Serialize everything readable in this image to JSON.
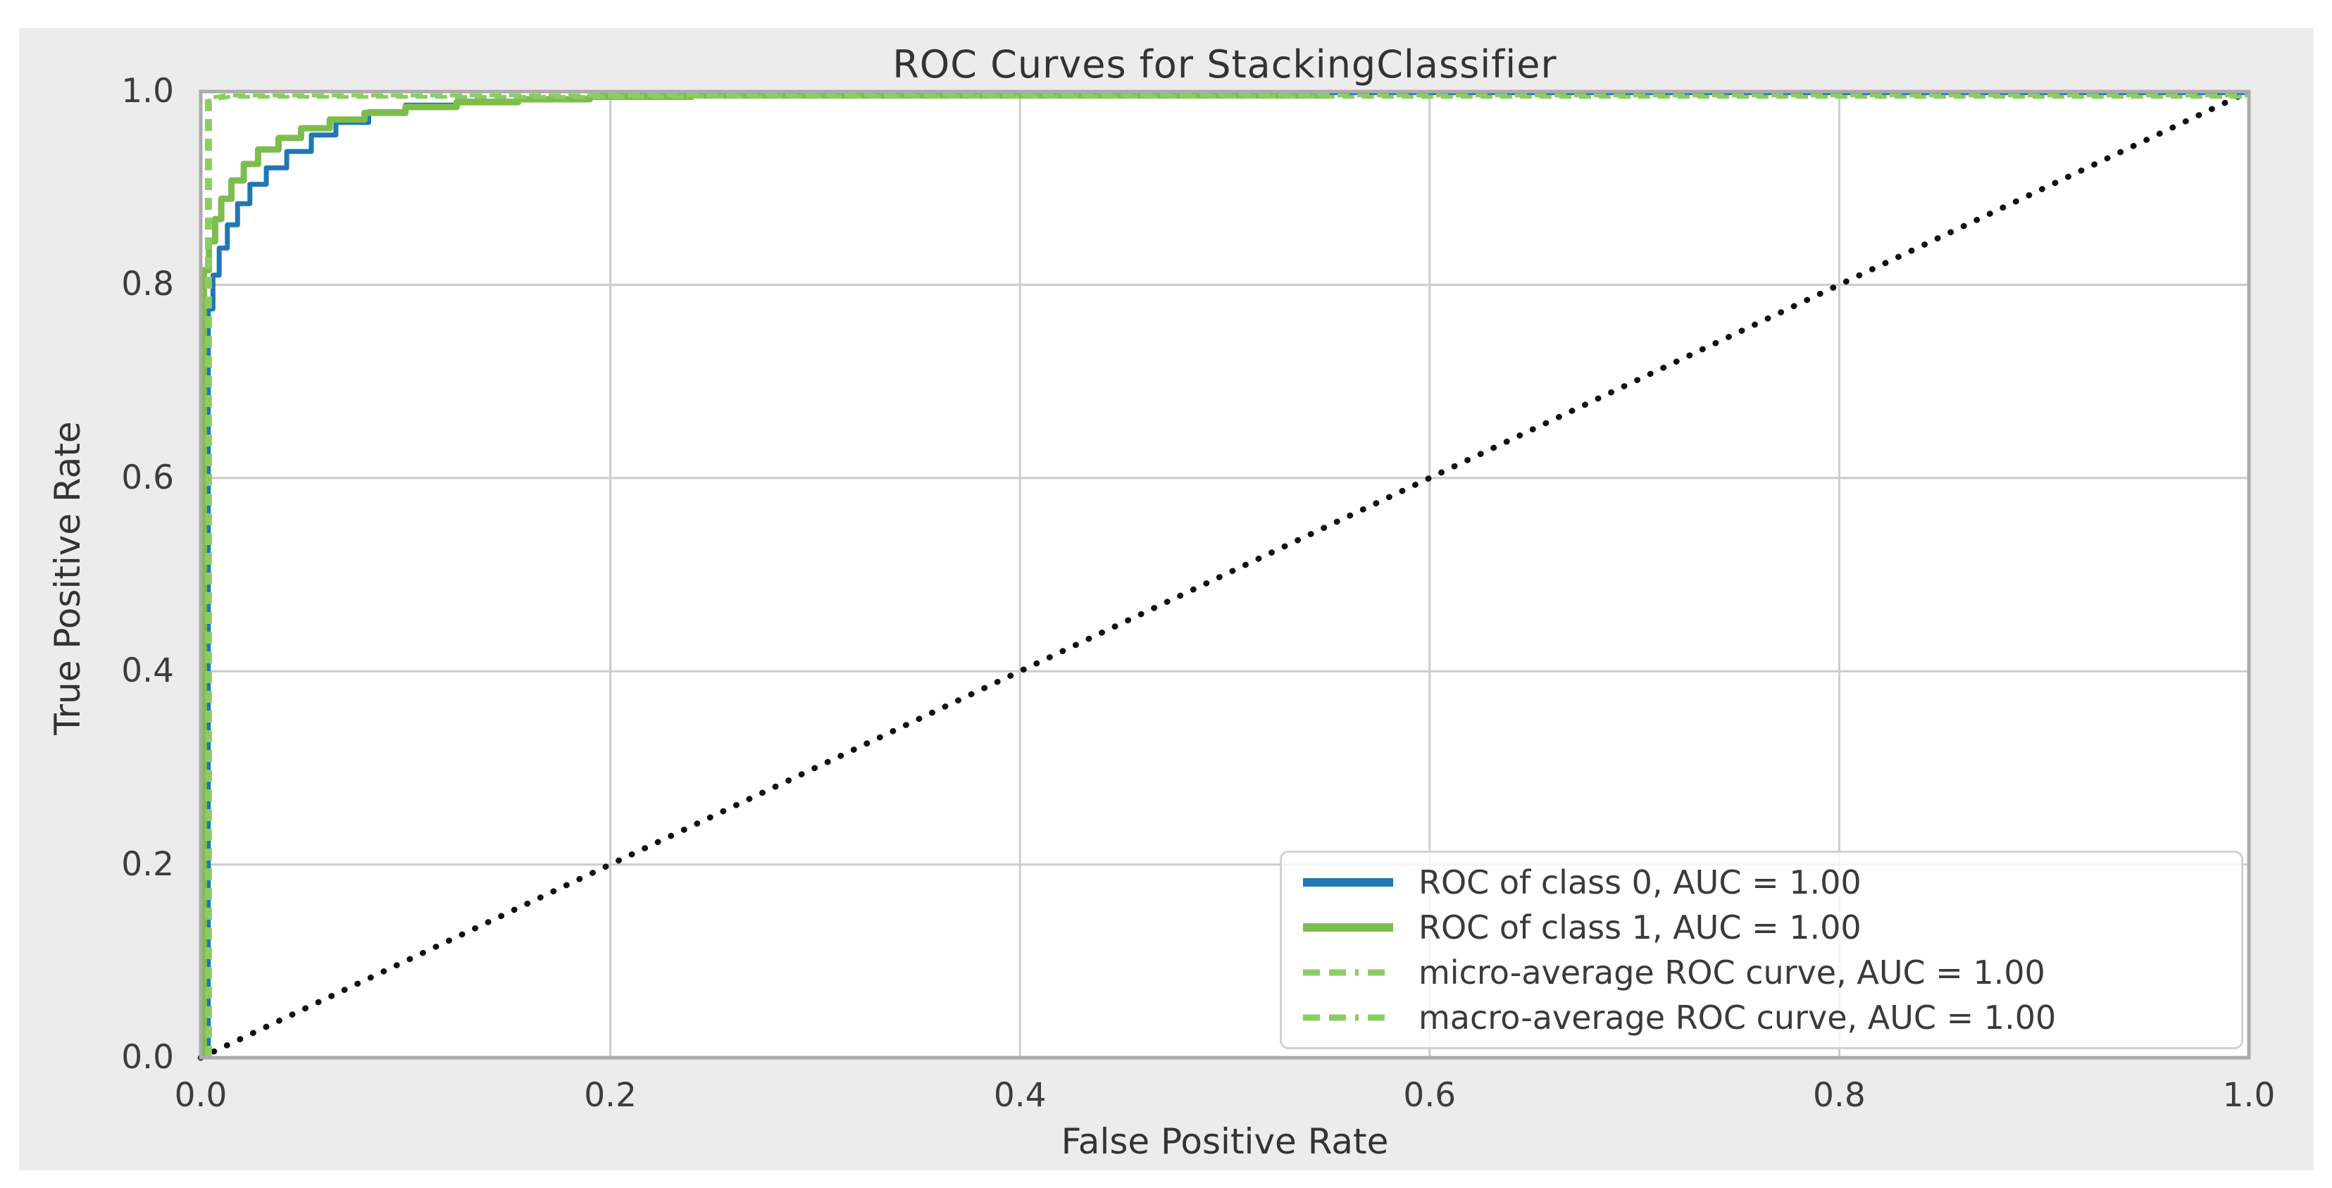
{
  "figure": {
    "title": "ROC Curves for StackingClassifier",
    "xlabel": "False Positive Rate",
    "ylabel": "True Positive Rate",
    "colors": {
      "figure_background": "#ececec",
      "axes_background": "#ffffff",
      "gridline": "#cccccc",
      "spine": "#ababab",
      "text": "#333333",
      "class0_blue": "#1f77b4",
      "class1_green": "#7dbd4c",
      "average_green_dashed": "#8ccd63",
      "diagonal_black": "#111111"
    }
  },
  "chart_data": {
    "type": "line",
    "title": "ROC Curves for StackingClassifier",
    "xlabel": "False Positive Rate",
    "ylabel": "True Positive Rate",
    "xlim": [
      0,
      1
    ],
    "ylim": [
      0,
      1
    ],
    "x_ticks": [
      0.0,
      0.2,
      0.4,
      0.6,
      0.8,
      1.0
    ],
    "y_ticks": [
      0.0,
      0.2,
      0.4,
      0.6,
      0.8,
      1.0
    ],
    "grid": true,
    "legend_position": "lower right",
    "reference_line": {
      "name": "chance-diagonal",
      "style": "dotted",
      "color": "#111111",
      "points": [
        [
          0,
          0
        ],
        [
          1,
          1
        ]
      ]
    },
    "series": [
      {
        "name": "ROC of class 0, AUC = 1.00",
        "auc": 1.0,
        "color": "#1f77b4",
        "style": "solid",
        "points": [
          [
            0.0037,
            0
          ],
          [
            0.0037,
            0.775
          ],
          [
            0.006,
            0.775
          ],
          [
            0.006,
            0.81
          ],
          [
            0.009,
            0.81
          ],
          [
            0.009,
            0.838
          ],
          [
            0.013,
            0.838
          ],
          [
            0.013,
            0.862
          ],
          [
            0.018,
            0.862
          ],
          [
            0.018,
            0.884
          ],
          [
            0.024,
            0.884
          ],
          [
            0.024,
            0.904
          ],
          [
            0.032,
            0.904
          ],
          [
            0.032,
            0.921
          ],
          [
            0.042,
            0.921
          ],
          [
            0.042,
            0.938
          ],
          [
            0.054,
            0.938
          ],
          [
            0.054,
            0.955
          ],
          [
            0.066,
            0.955
          ],
          [
            0.066,
            0.968
          ],
          [
            0.082,
            0.968
          ],
          [
            0.082,
            0.979
          ],
          [
            0.1,
            0.979
          ],
          [
            0.1,
            0.986
          ],
          [
            0.125,
            0.986
          ],
          [
            0.125,
            0.99
          ],
          [
            0.155,
            0.99
          ],
          [
            0.155,
            0.992
          ],
          [
            0.19,
            0.992
          ],
          [
            0.19,
            0.994
          ],
          [
            0.24,
            0.994
          ],
          [
            0.24,
            0.996
          ],
          [
            0.32,
            0.996
          ],
          [
            0.32,
            0.998
          ],
          [
            0.45,
            0.998
          ],
          [
            0.45,
            0.9988
          ],
          [
            1,
            0.9988
          ]
        ]
      },
      {
        "name": "ROC of class 1, AUC = 1.00",
        "auc": 1.0,
        "color": "#7dbd4c",
        "style": "solid",
        "points": [
          [
            0.0015,
            0
          ],
          [
            0.0015,
            0.815
          ],
          [
            0.004,
            0.815
          ],
          [
            0.004,
            0.845
          ],
          [
            0.007,
            0.845
          ],
          [
            0.007,
            0.868
          ],
          [
            0.01,
            0.868
          ],
          [
            0.01,
            0.889
          ],
          [
            0.015,
            0.889
          ],
          [
            0.015,
            0.908
          ],
          [
            0.021,
            0.908
          ],
          [
            0.021,
            0.925
          ],
          [
            0.028,
            0.925
          ],
          [
            0.028,
            0.94
          ],
          [
            0.038,
            0.94
          ],
          [
            0.038,
            0.952
          ],
          [
            0.049,
            0.952
          ],
          [
            0.049,
            0.962
          ],
          [
            0.063,
            0.962
          ],
          [
            0.063,
            0.971
          ],
          [
            0.08,
            0.971
          ],
          [
            0.08,
            0.978
          ],
          [
            0.1,
            0.978
          ],
          [
            0.1,
            0.984
          ],
          [
            0.125,
            0.984
          ],
          [
            0.125,
            0.989
          ],
          [
            0.155,
            0.989
          ],
          [
            0.155,
            0.992
          ],
          [
            0.19,
            0.992
          ],
          [
            0.19,
            0.995
          ],
          [
            0.24,
            0.995
          ],
          [
            0.24,
            0.996
          ],
          [
            0.55,
            0.996
          ]
        ]
      },
      {
        "name": "micro-average ROC curve, AUC = 1.00",
        "auc": 1.0,
        "color": "#8ccd63",
        "style": "dashed",
        "points": [
          [
            0.003,
            0
          ],
          [
            0.003,
            0.993
          ],
          [
            0.012,
            0.996
          ],
          [
            1,
            0.996
          ]
        ]
      },
      {
        "name": "macro-average ROC curve, AUC = 1.00",
        "auc": 1.0,
        "color": "#8ccd63",
        "style": "dashed",
        "points": [
          [
            0.0045,
            0
          ],
          [
            0.0045,
            0.991
          ],
          [
            0.014,
            0.9945
          ],
          [
            1,
            0.9945
          ]
        ]
      }
    ]
  }
}
